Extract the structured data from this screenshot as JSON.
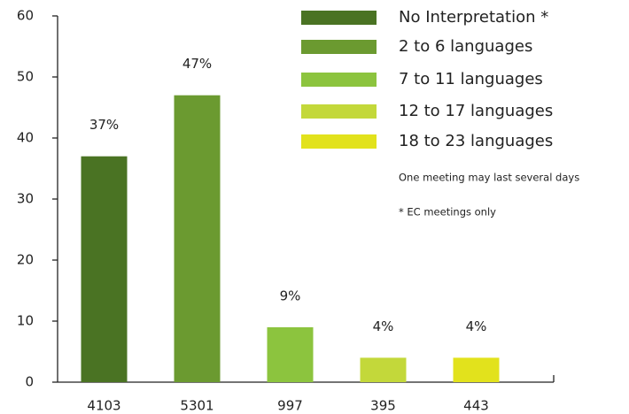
{
  "chart_data": {
    "type": "bar",
    "categories": [
      "4103",
      "5301",
      "997",
      "395",
      "443"
    ],
    "values": [
      37,
      47,
      9,
      4,
      4
    ],
    "value_labels": [
      "37%",
      "47%",
      "9%",
      "4%",
      "4%"
    ],
    "colors": [
      "#4a7323",
      "#6b9a30",
      "#8cc43e",
      "#c3d83a",
      "#e2e21c"
    ],
    "legend": [
      "No Interpretation *",
      "2 to 6 languages",
      "7 to 11 languages",
      "12 to 17 languages",
      "18 to 23 languages"
    ],
    "annotations": [
      "One meeting may last several days",
      "* EC meetings only"
    ],
    "ylim": [
      0,
      60
    ],
    "yticks": [
      0,
      10,
      20,
      30,
      40,
      50,
      60
    ]
  }
}
